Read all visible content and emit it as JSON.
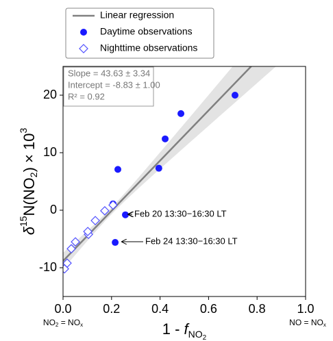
{
  "chart_data": {
    "type": "scatter",
    "xlabel": {
      "main": "1 - ",
      "italic": "f",
      "sub": "NO",
      "subsub": "2"
    },
    "ylabel": {
      "delta": "δ",
      "sup": "15",
      "main": "N(NO",
      "sub": "2",
      "rest": ") × 10",
      "sup2": "3"
    },
    "left_note": {
      "a": "NO",
      "a_sub": "2",
      "b": " = NO",
      "b_sub": "x"
    },
    "right_note": {
      "a": "NO = NO",
      "a_sub": "x"
    },
    "xlim": [
      0,
      1
    ],
    "ylim": [
      -15,
      25
    ],
    "xticks": [
      {
        "value": 0,
        "label": "0.0"
      },
      {
        "value": 0.2,
        "label": "0.2"
      },
      {
        "value": 0.4,
        "label": "0.4"
      },
      {
        "value": 0.6,
        "label": "0.6"
      },
      {
        "value": 0.8,
        "label": "0.8"
      },
      {
        "value": 1,
        "label": "1.0"
      }
    ],
    "yticks": [
      -10,
      0,
      10,
      20
    ],
    "fit": {
      "name": "Linear regression",
      "color": "#808080",
      "slope": 43.63,
      "intercept": -8.83
    },
    "stats": [
      "Slope = 43.63 ± 3.34",
      "Intercept = -8.83 ± 1.00",
      "R² = 0.92"
    ],
    "series": [
      {
        "name": "Daytime observations",
        "color": "#1a1aff",
        "marker": "circle",
        "x": [
          0.709,
          0.486,
          0.421,
          0.226,
          0.395,
          0.206,
          0.257,
          0.215
        ],
        "values": [
          20.0,
          16.8,
          12.4,
          7.1,
          7.3,
          1.1,
          -0.8,
          -5.6
        ]
      },
      {
        "name": "Nighttime observations",
        "color": "#5050ff",
        "marker": "diamond",
        "x": [
          0.006,
          0.017,
          0.034,
          0.051,
          0.105,
          0.102,
          0.133,
          0.172,
          0.206
        ],
        "values": [
          -10.2,
          -9.2,
          -6.7,
          -5.5,
          -4.2,
          -3.7,
          -1.8,
          -0.1,
          0.9
        ]
      }
    ],
    "annotations": [
      "Feb 20 13:30−16:30 LT",
      "Feb 24 13:30−16:30 LT"
    ]
  }
}
